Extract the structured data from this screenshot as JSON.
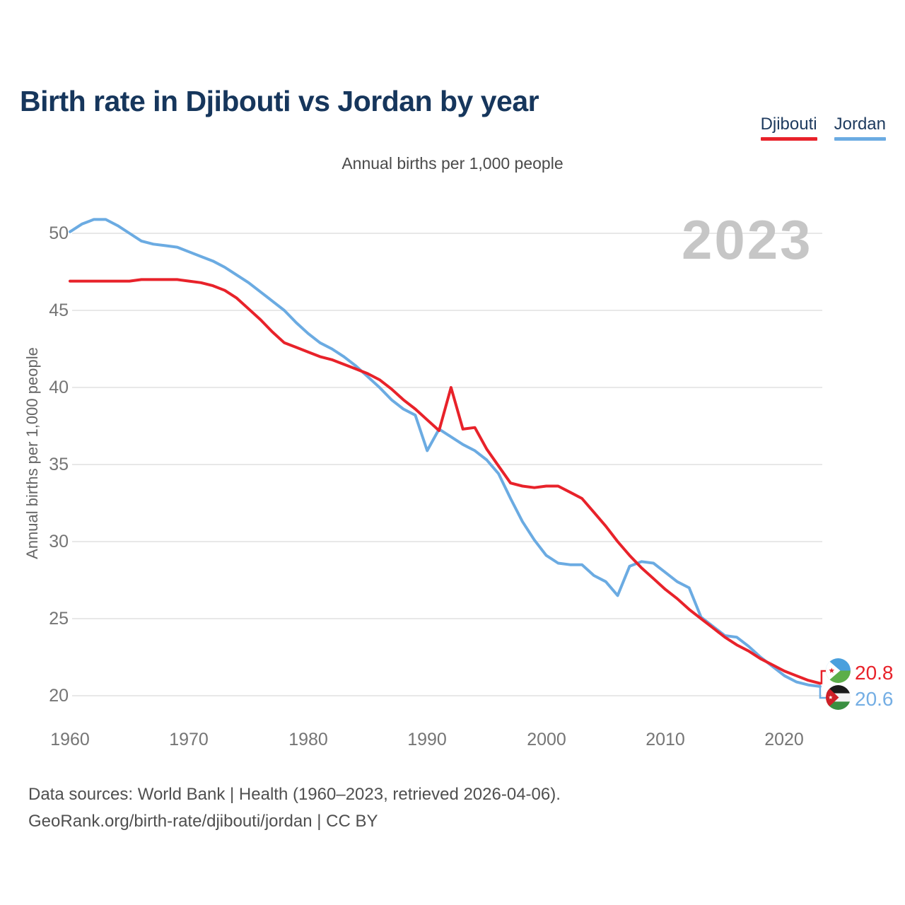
{
  "header": {
    "title": "Birth rate in Djibouti vs Jordan by year"
  },
  "legend": [
    {
      "label": "Djibouti",
      "color": "#e8222a"
    },
    {
      "label": "Jordan",
      "color": "#6babe2"
    }
  ],
  "subtitle": "Annual births per 1,000 people",
  "watermark": "2023",
  "axes": {
    "y_title": "Annual births per 1,000 people",
    "y_ticks": [
      "50",
      "45",
      "40",
      "35",
      "30",
      "25",
      "20"
    ],
    "x_ticks": [
      "1960",
      "1970",
      "1980",
      "1990",
      "2000",
      "2010",
      "2020"
    ]
  },
  "end_labels": [
    {
      "series": "Djibouti",
      "value": "20.8",
      "color": "#e8222a",
      "icon": "djibouti-flag-icon"
    },
    {
      "series": "Jordan",
      "value": "20.6",
      "color": "#74aee4",
      "icon": "jordan-flag-icon"
    }
  ],
  "footer": {
    "line1": "Data sources: World Bank | Health (1960–2023, retrieved 2026-04-06).",
    "line2": "GeoRank.org/birth-rate/djibouti/jordan | CC BY"
  },
  "chart_data": {
    "type": "line",
    "title": "Birth rate in Djibouti vs Jordan by year",
    "ylabel": "Annual births per 1,000 people",
    "xlim": [
      1960,
      2023
    ],
    "ylim": [
      18.5,
      52
    ],
    "yticks": [
      50,
      45,
      40,
      35,
      30,
      25,
      20
    ],
    "xticks": [
      1960,
      1970,
      1980,
      1990,
      2000,
      2010,
      2020
    ],
    "grid": "horizontal",
    "legend_position": "top-right",
    "gridline_color": "#e8e8e8",
    "x": [
      1960,
      1961,
      1962,
      1963,
      1964,
      1965,
      1966,
      1967,
      1968,
      1969,
      1970,
      1971,
      1972,
      1973,
      1974,
      1975,
      1976,
      1977,
      1978,
      1979,
      1980,
      1981,
      1982,
      1983,
      1984,
      1985,
      1986,
      1987,
      1988,
      1989,
      1990,
      1991,
      1992,
      1993,
      1994,
      1995,
      1996,
      1997,
      1998,
      1999,
      2000,
      2001,
      2002,
      2003,
      2004,
      2005,
      2006,
      2007,
      2008,
      2009,
      2010,
      2011,
      2012,
      2013,
      2014,
      2015,
      2016,
      2017,
      2018,
      2019,
      2020,
      2021,
      2022,
      2023
    ],
    "series": [
      {
        "name": "Djibouti",
        "color": "#e8222a",
        "values": [
          46.9,
          46.9,
          46.9,
          46.9,
          46.9,
          46.9,
          47.0,
          47.0,
          47.0,
          47.0,
          46.9,
          46.8,
          46.6,
          46.3,
          45.8,
          45.1,
          44.4,
          43.6,
          42.9,
          42.6,
          42.3,
          42.0,
          41.8,
          41.5,
          41.2,
          40.9,
          40.5,
          39.9,
          39.2,
          38.6,
          37.9,
          37.2,
          40.0,
          37.3,
          37.4,
          36.0,
          34.9,
          33.8,
          33.6,
          33.5,
          33.6,
          33.6,
          33.2,
          32.8,
          31.9,
          31.0,
          30.0,
          29.1,
          28.3,
          27.6,
          26.9,
          26.3,
          25.6,
          25.0,
          24.4,
          23.8,
          23.3,
          22.9,
          22.4,
          22.0,
          21.6,
          21.3,
          21.0,
          20.8
        ]
      },
      {
        "name": "Jordan",
        "color": "#6babe2",
        "values": [
          50.1,
          50.6,
          50.9,
          50.9,
          50.5,
          50.0,
          49.5,
          49.3,
          49.2,
          49.1,
          48.8,
          48.5,
          48.2,
          47.8,
          47.3,
          46.8,
          46.2,
          45.6,
          45.0,
          44.2,
          43.5,
          42.9,
          42.5,
          42.0,
          41.4,
          40.7,
          40.0,
          39.2,
          38.6,
          38.2,
          35.9,
          37.3,
          36.8,
          36.3,
          35.9,
          35.3,
          34.4,
          32.8,
          31.3,
          30.1,
          29.1,
          28.6,
          28.5,
          28.5,
          27.8,
          27.4,
          26.5,
          28.4,
          28.7,
          28.6,
          28.0,
          27.4,
          27.0,
          25.1,
          24.5,
          23.9,
          23.8,
          23.2,
          22.5,
          21.9,
          21.3,
          20.9,
          20.7,
          20.6
        ]
      }
    ]
  }
}
